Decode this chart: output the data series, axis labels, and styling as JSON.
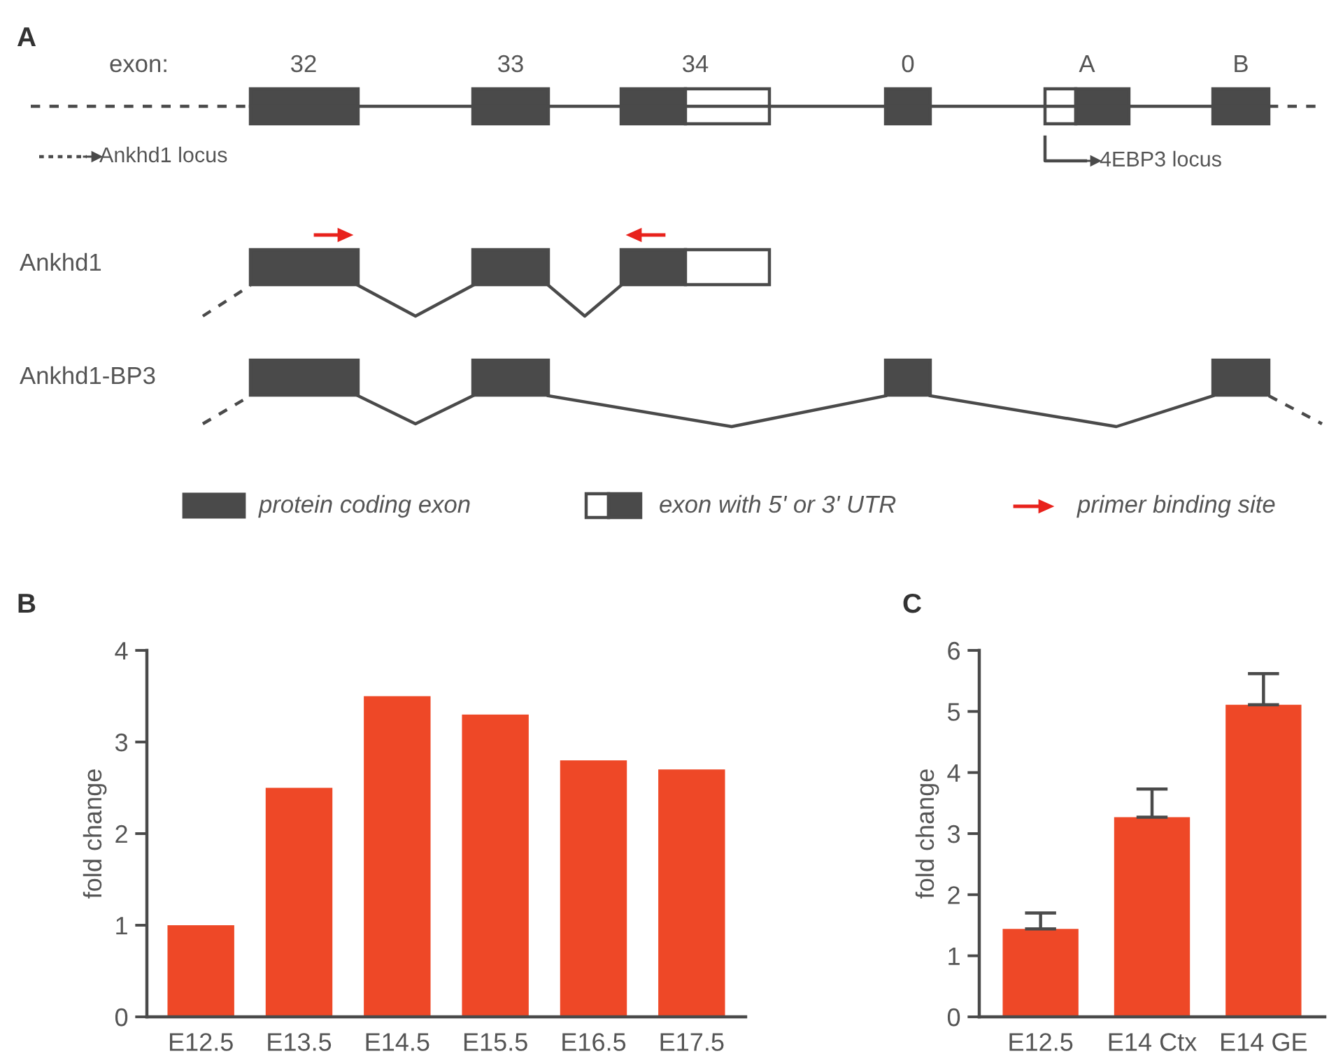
{
  "chart_data": [
    {
      "type": "other",
      "title": "A",
      "annotations": [
        "exon:",
        "32",
        "33",
        "34",
        "0",
        "A",
        "B",
        "Ankhd1 locus",
        "4EBP3 locus",
        "Ankhd1",
        "Ankhd1-BP3",
        "protein coding exon",
        "exon with 5' or 3' UTR",
        "primer binding site"
      ]
    },
    {
      "type": "bar",
      "title": "B",
      "ylabel": "fold change",
      "categories": [
        "E12.5",
        "E13.5",
        "E14.5",
        "E15.5",
        "E16.5",
        "E17.5"
      ],
      "values": [
        1.0,
        2.5,
        3.5,
        3.3,
        2.8,
        2.7
      ],
      "color": "#ee4827",
      "ylim": [
        0,
        4
      ],
      "yticks": [
        0,
        1,
        2,
        3,
        4
      ],
      "grid": false,
      "legend": false
    },
    {
      "type": "bar",
      "title": "C",
      "ylabel": "fold change",
      "categories": [
        "E12.5",
        "E14 Ctx",
        "E14 GE"
      ],
      "values": [
        1.44,
        3.27,
        5.11
      ],
      "errors": [
        [
          1.44,
          1.7
        ],
        [
          3.27,
          3.73
        ],
        [
          5.11,
          5.62
        ]
      ],
      "color": "#ee4827",
      "ylim": [
        0,
        6
      ],
      "yticks": [
        0,
        1,
        2,
        3,
        4,
        5,
        6
      ],
      "grid": false,
      "legend": false
    }
  ]
}
